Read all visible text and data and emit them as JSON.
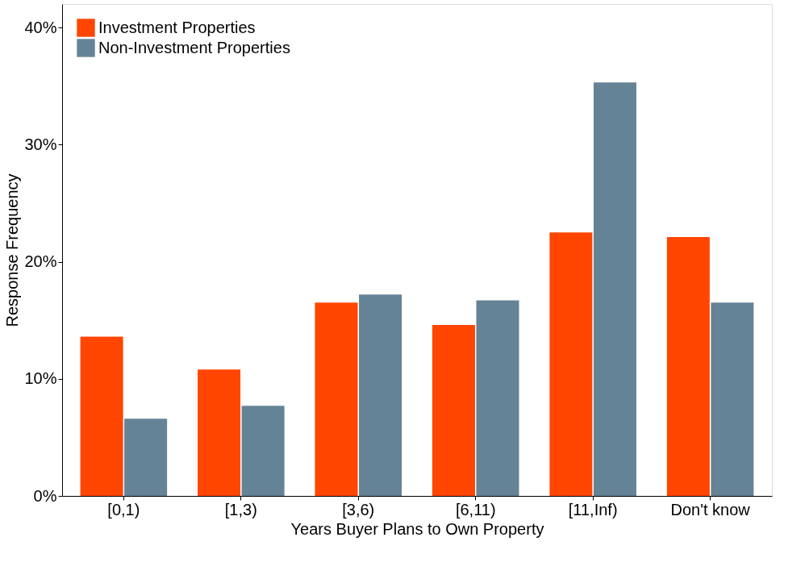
{
  "chart_data": {
    "type": "bar",
    "xlabel": "Years Buyer Plans to Own Property",
    "ylabel": "Response Frequency",
    "categories": [
      "[0,1)",
      "[1,3)",
      "[3,6)",
      "[6,11)",
      "[11,Inf)",
      "Don't know"
    ],
    "series": [
      {
        "name": "Investment Properties",
        "color": "#ff4500",
        "values": [
          13.6,
          10.8,
          16.5,
          14.6,
          22.5,
          22.1
        ]
      },
      {
        "name": "Non-Investment Properties",
        "color": "#658396",
        "values": [
          6.6,
          7.7,
          17.2,
          16.7,
          35.3,
          16.5
        ]
      }
    ],
    "ylim": [
      0,
      42
    ],
    "yticks": [
      {
        "value": 0,
        "label": "0%"
      },
      {
        "value": 10,
        "label": "10%"
      },
      {
        "value": 20,
        "label": "20%"
      },
      {
        "value": 30,
        "label": "30%"
      },
      {
        "value": 40,
        "label": "40%"
      }
    ],
    "grid": false,
    "legend": "top left"
  }
}
